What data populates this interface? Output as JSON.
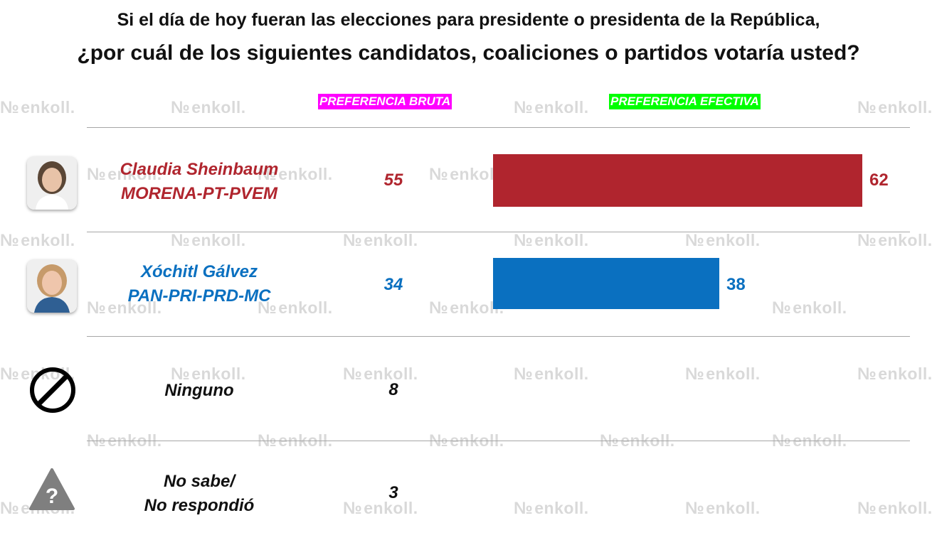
{
  "title_line1": "Si el día de hoy fueran las elecciones para presidente o presidenta de la República,",
  "title_line2": "¿por cuál de los siguientes candidatos, coaliciones o partidos votaría usted?",
  "watermark": "enkoll.",
  "headers": {
    "bruta": "PREFERENCIA BRUTA",
    "efectiva": "PREFERENCIA EFECTIVA",
    "bruta_color": "#ff00ff",
    "efectiva_color": "#00ff00"
  },
  "chart_data": {
    "type": "bar",
    "orientation": "horizontal",
    "categories": [
      "Claudia Sheinbaum MORENA-PT-PVEM",
      "Xóchitl Gálvez PAN-PRI-PRD-MC",
      "Ninguno",
      "No sabe/ No respondió"
    ],
    "series": [
      {
        "name": "PREFERENCIA BRUTA",
        "values": [
          55,
          34,
          8,
          3
        ]
      },
      {
        "name": "PREFERENCIA EFECTIVA",
        "values": [
          62,
          38,
          null,
          null
        ]
      }
    ],
    "xlim": [
      0,
      62
    ]
  },
  "rows": [
    {
      "name": "Claudia Sheinbaum",
      "party": "MORENA-PT-PVEM",
      "bruta": "55",
      "efectiva": 62,
      "efectiva_label": "62",
      "color": "#b0252e"
    },
    {
      "name": "Xóchitl Gálvez",
      "party": "PAN-PRI-PRD-MC",
      "bruta": "34",
      "efectiva": 38,
      "efectiva_label": "38",
      "color": "#0a70c0"
    },
    {
      "name": "Ninguno",
      "bruta": "8",
      "icon": "no-symbol-icon"
    },
    {
      "line1": "No sabe/",
      "line2": "No respondió",
      "bruta": "3",
      "icon": "question-triangle-icon"
    }
  ]
}
